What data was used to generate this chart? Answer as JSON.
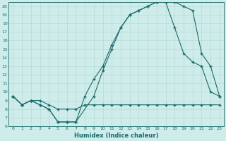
{
  "xlabel": "Humidex (Indice chaleur)",
  "background_color": "#ceecea",
  "line_color": "#1a6b6b",
  "xlim": [
    -0.5,
    23.5
  ],
  "ylim": [
    6,
    20.5
  ],
  "yticks": [
    6,
    7,
    8,
    9,
    10,
    11,
    12,
    13,
    14,
    15,
    16,
    17,
    18,
    19,
    20
  ],
  "xticks": [
    0,
    1,
    2,
    3,
    4,
    5,
    6,
    7,
    8,
    9,
    10,
    11,
    12,
    13,
    14,
    15,
    16,
    17,
    18,
    19,
    20,
    21,
    22,
    23
  ],
  "line1_x": [
    0,
    1,
    2,
    3,
    4,
    5,
    6,
    7,
    8,
    9,
    10,
    11,
    12,
    13,
    14,
    15,
    16,
    17,
    18,
    19,
    20,
    21,
    22,
    23
  ],
  "line1_y": [
    9.5,
    8.5,
    9.0,
    9.0,
    8.5,
    8.0,
    8.0,
    8.0,
    8.5,
    8.5,
    8.5,
    8.5,
    8.5,
    8.5,
    8.5,
    8.5,
    8.5,
    8.5,
    8.5,
    8.5,
    8.5,
    8.5,
    8.5,
    8.5
  ],
  "line2_x": [
    0,
    1,
    2,
    3,
    4,
    5,
    6,
    7,
    8,
    9,
    10,
    11,
    12,
    13,
    14,
    15,
    16,
    17,
    18,
    19,
    20,
    21,
    22,
    23
  ],
  "line2_y": [
    9.5,
    8.5,
    9.0,
    8.5,
    8.0,
    6.5,
    6.5,
    6.5,
    9.5,
    11.5,
    13.0,
    15.5,
    17.5,
    19.0,
    19.5,
    20.0,
    20.5,
    20.5,
    17.5,
    14.5,
    13.5,
    13.0,
    10.0,
    9.5
  ],
  "line3_x": [
    0,
    1,
    2,
    3,
    4,
    5,
    6,
    7,
    9,
    10,
    11,
    12,
    13,
    14,
    15,
    16,
    17,
    18,
    19,
    20,
    21,
    22,
    23
  ],
  "line3_y": [
    9.5,
    8.5,
    9.0,
    8.5,
    8.0,
    6.5,
    6.5,
    6.5,
    9.5,
    12.5,
    15.0,
    17.5,
    19.0,
    19.5,
    20.0,
    20.5,
    20.5,
    20.5,
    20.0,
    19.5,
    14.5,
    13.0,
    9.5
  ]
}
